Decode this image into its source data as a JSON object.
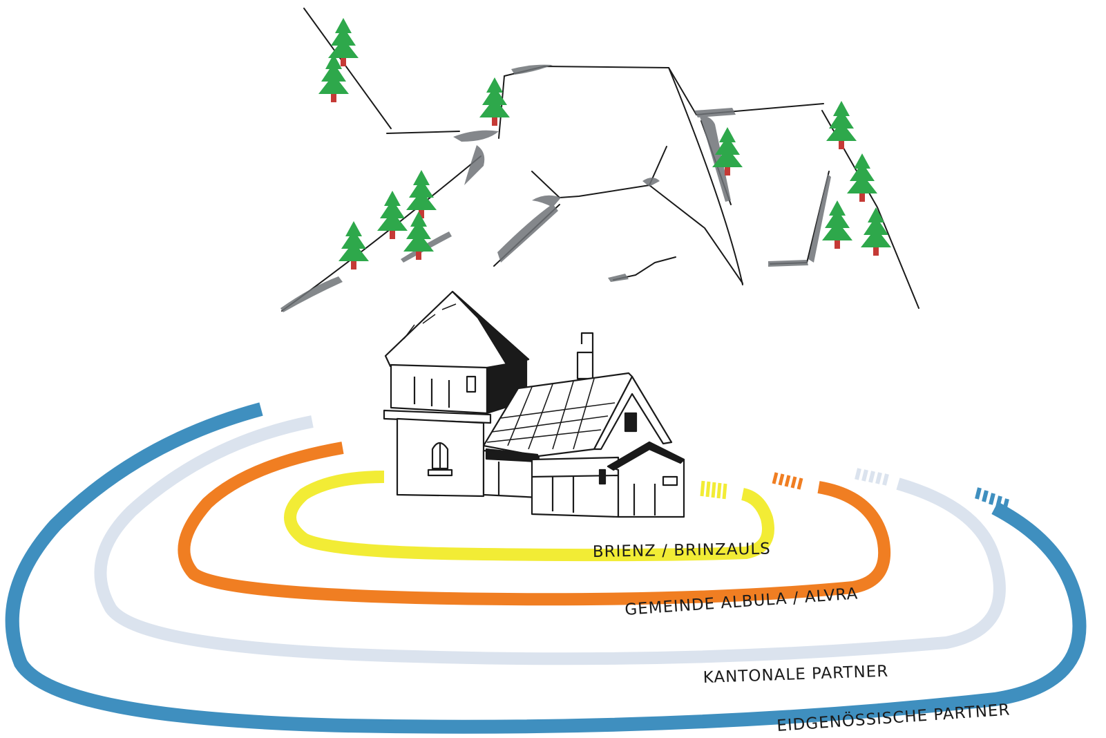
{
  "rings": [
    {
      "id": "brienz",
      "label": "BRIENZ / BRINZAULS",
      "color": "#f2ec35"
    },
    {
      "id": "albula",
      "label": "GEMEINDE ALBULA / ALVRA",
      "color": "#f07e22"
    },
    {
      "id": "kanton",
      "label": "KANTONALE PARTNER",
      "color": "#dbe3ee"
    },
    {
      "id": "bund",
      "label": "EIDGENÖSSISCHE PARTNER",
      "color": "#3f8fbf"
    }
  ],
  "colors": {
    "ink": "#1a1a1a",
    "rock_shadow": "#6f7377",
    "tree_green": "#2ea84b",
    "tree_trunk": "#c53a36"
  },
  "icons": [
    "mountain-drawing",
    "tree-icon",
    "house-drawing"
  ]
}
